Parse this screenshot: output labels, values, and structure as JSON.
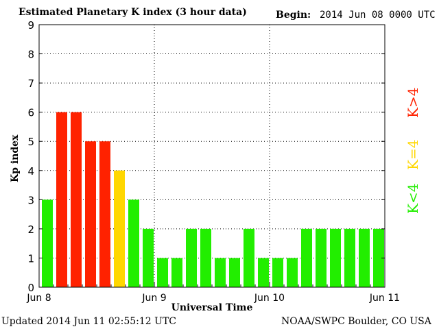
{
  "header": {
    "title": "Estimated Planetary K index (3 hour data)",
    "begin_label": "Begin:",
    "begin_value": "2014 Jun 08 0000 UTC"
  },
  "footer": {
    "updated": "Updated 2014 Jun 11 02:55:12 UTC",
    "credit": "NOAA/SWPC Boulder, CO USA"
  },
  "legend": {
    "high": "K>4",
    "equal": "K=4",
    "low": "K<4"
  },
  "colors": {
    "high": "#ff2200",
    "equal": "#ffd700",
    "low": "#22ee00"
  },
  "chart_data": {
    "type": "bar",
    "title": "Estimated Planetary K index (3 hour data)",
    "xlabel": "Universal Time",
    "ylabel": "Kp index",
    "ylim": [
      0,
      9
    ],
    "yticks": [
      0,
      1,
      2,
      3,
      4,
      5,
      6,
      7,
      8,
      9
    ],
    "xticks": [
      "Jun 8",
      "Jun 9",
      "Jun 10",
      "Jun 11"
    ],
    "bar_interval_hours": 3,
    "grid": true,
    "values": [
      3,
      6,
      6,
      5,
      5,
      4,
      3,
      2,
      1,
      1,
      2,
      2,
      1,
      1,
      2,
      1,
      1,
      1,
      2,
      2,
      2,
      2,
      2,
      2
    ]
  }
}
